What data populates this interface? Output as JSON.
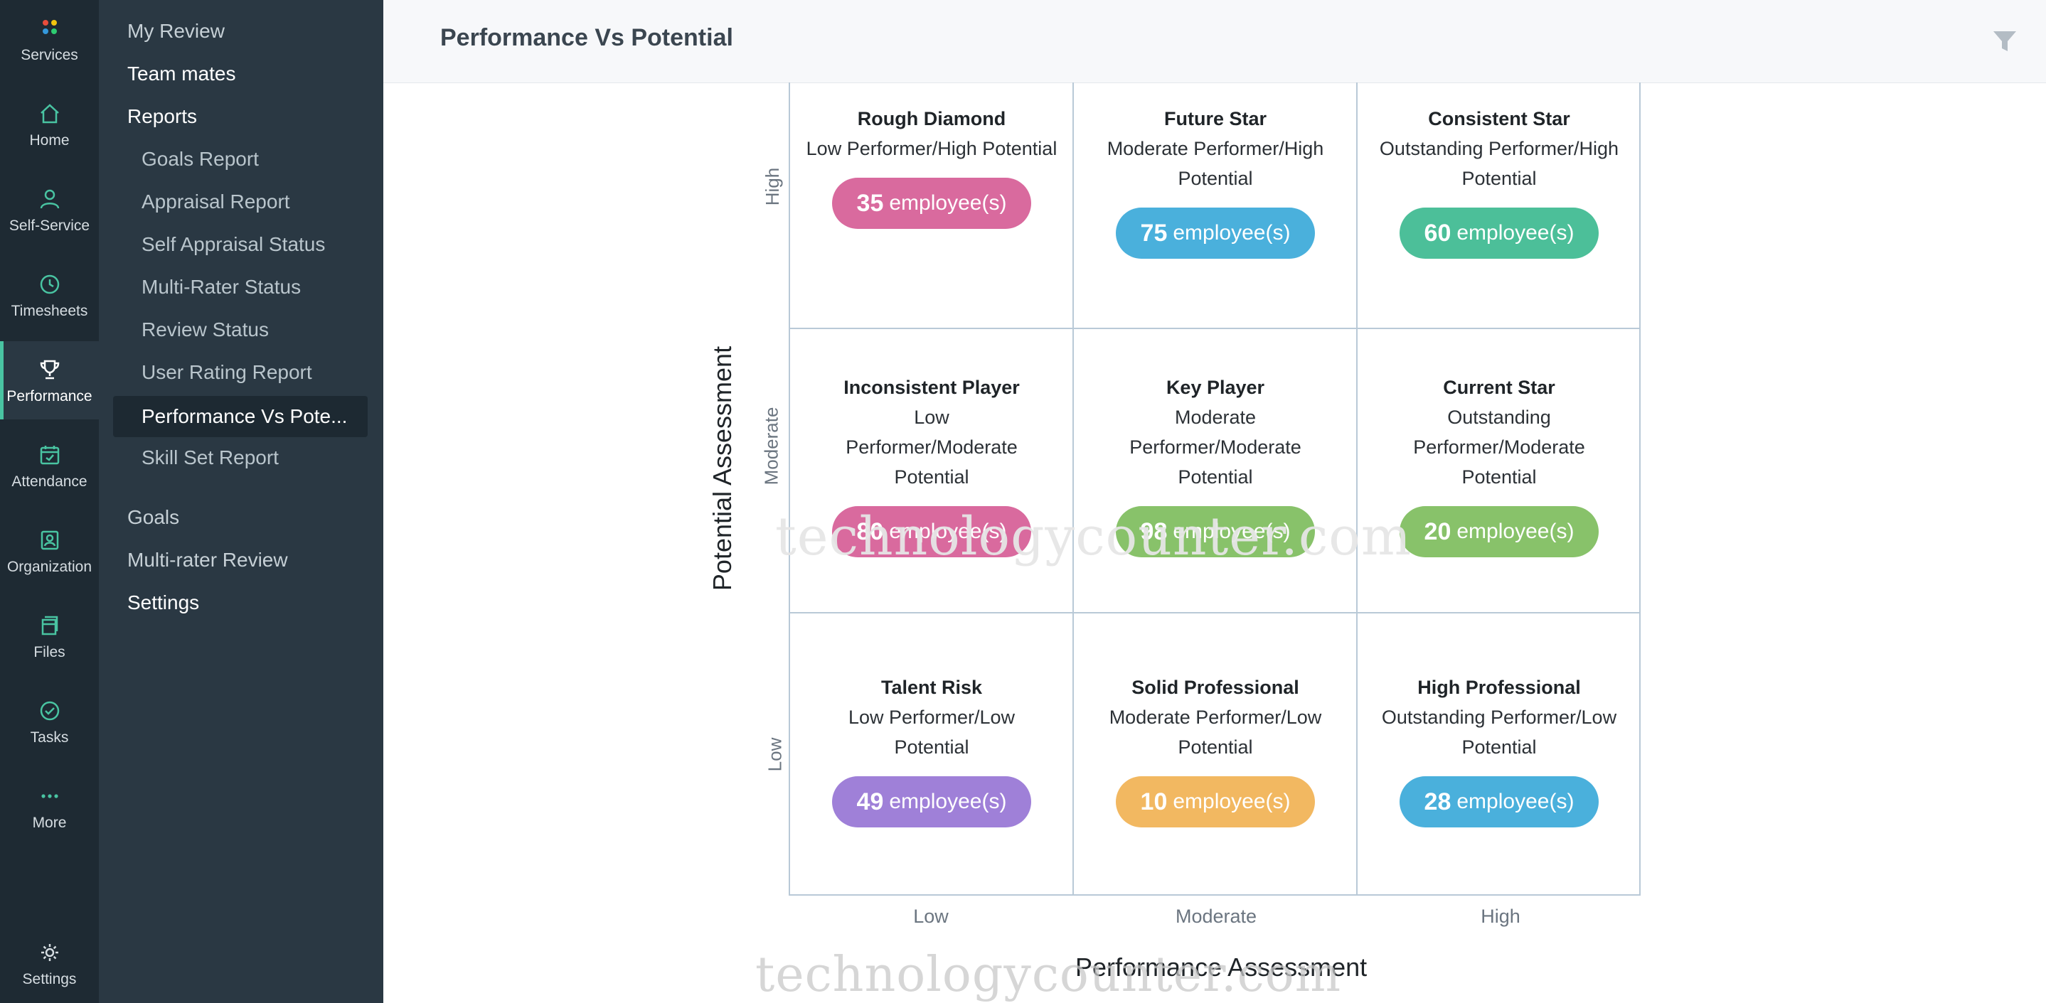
{
  "rail": {
    "items": [
      {
        "label": "Services",
        "icon": "services-icon"
      },
      {
        "label": "Home",
        "icon": "home-icon"
      },
      {
        "label": "Self-Service",
        "icon": "user-icon"
      },
      {
        "label": "Timesheets",
        "icon": "clock-icon"
      },
      {
        "label": "Performance",
        "icon": "trophy-icon",
        "active": true
      },
      {
        "label": "Attendance",
        "icon": "calendar-icon"
      },
      {
        "label": "Organization",
        "icon": "organization-icon"
      },
      {
        "label": "Files",
        "icon": "files-icon"
      },
      {
        "label": "Tasks",
        "icon": "tasks-icon"
      },
      {
        "label": "More",
        "icon": "more-icon"
      },
      {
        "label": "Settings",
        "icon": "gear-icon"
      }
    ]
  },
  "subnav": {
    "my_review": "My Review",
    "team_mates": "Team mates",
    "reports": "Reports",
    "report_items": [
      "Goals Report",
      "Appraisal Report",
      "Self Appraisal Status",
      "Multi-Rater Status",
      "Review Status",
      "User Rating Report",
      "Performance Vs Pote...",
      "Skill Set Report"
    ],
    "goals": "Goals",
    "multi_rater_review": "Multi-rater Review",
    "settings": "Settings"
  },
  "header": {
    "title": "Performance Vs Potential",
    "filter_icon": "filter-icon"
  },
  "matrix": {
    "y_axis_title": "Potential Assessment",
    "x_axis_title": "Performance Assessment",
    "y_ticks": [
      "High",
      "Moderate",
      "Low"
    ],
    "x_ticks": [
      "Low",
      "Moderate",
      "High"
    ],
    "cells": [
      {
        "name": "Rough Diamond",
        "desc": "Low Performer/High Potential",
        "count": "35",
        "suffix": "employee(s)",
        "color": "#d96a9e"
      },
      {
        "name": "Future Star",
        "desc": "Moderate Performer/High Potential",
        "count": "75",
        "suffix": "employee(s)",
        "color": "#4ab0dc"
      },
      {
        "name": "Consistent Star",
        "desc": "Outstanding Performer/High Potential",
        "count": "60",
        "suffix": "employee(s)",
        "color": "#4cbf99"
      },
      {
        "name": "Inconsistent Player",
        "desc": "Low Performer/Moderate Potential",
        "count": "80",
        "suffix": "employee(s)",
        "color": "#d96a9e"
      },
      {
        "name": "Key Player",
        "desc": "Moderate Performer/Moderate Potential",
        "count": "98",
        "suffix": "employee(s)",
        "color": "#88c26a"
      },
      {
        "name": "Current Star",
        "desc": "Outstanding Performer/Moderate Potential",
        "count": "20",
        "suffix": "employee(s)",
        "color": "#88c26a"
      },
      {
        "name": "Talent Risk",
        "desc": "Low Performer/Low Potential",
        "count": "49",
        "suffix": "employee(s)",
        "color": "#9f80d8"
      },
      {
        "name": "Solid Professional",
        "desc": "Moderate Performer/Low Potential",
        "count": "10",
        "suffix": "employee(s)",
        "color": "#f2b861"
      },
      {
        "name": "High Professional",
        "desc": "Outstanding Performer/Low Potential",
        "count": "28",
        "suffix": "employee(s)",
        "color": "#4ab0dc"
      }
    ]
  },
  "watermark": "technologycounter.com"
}
